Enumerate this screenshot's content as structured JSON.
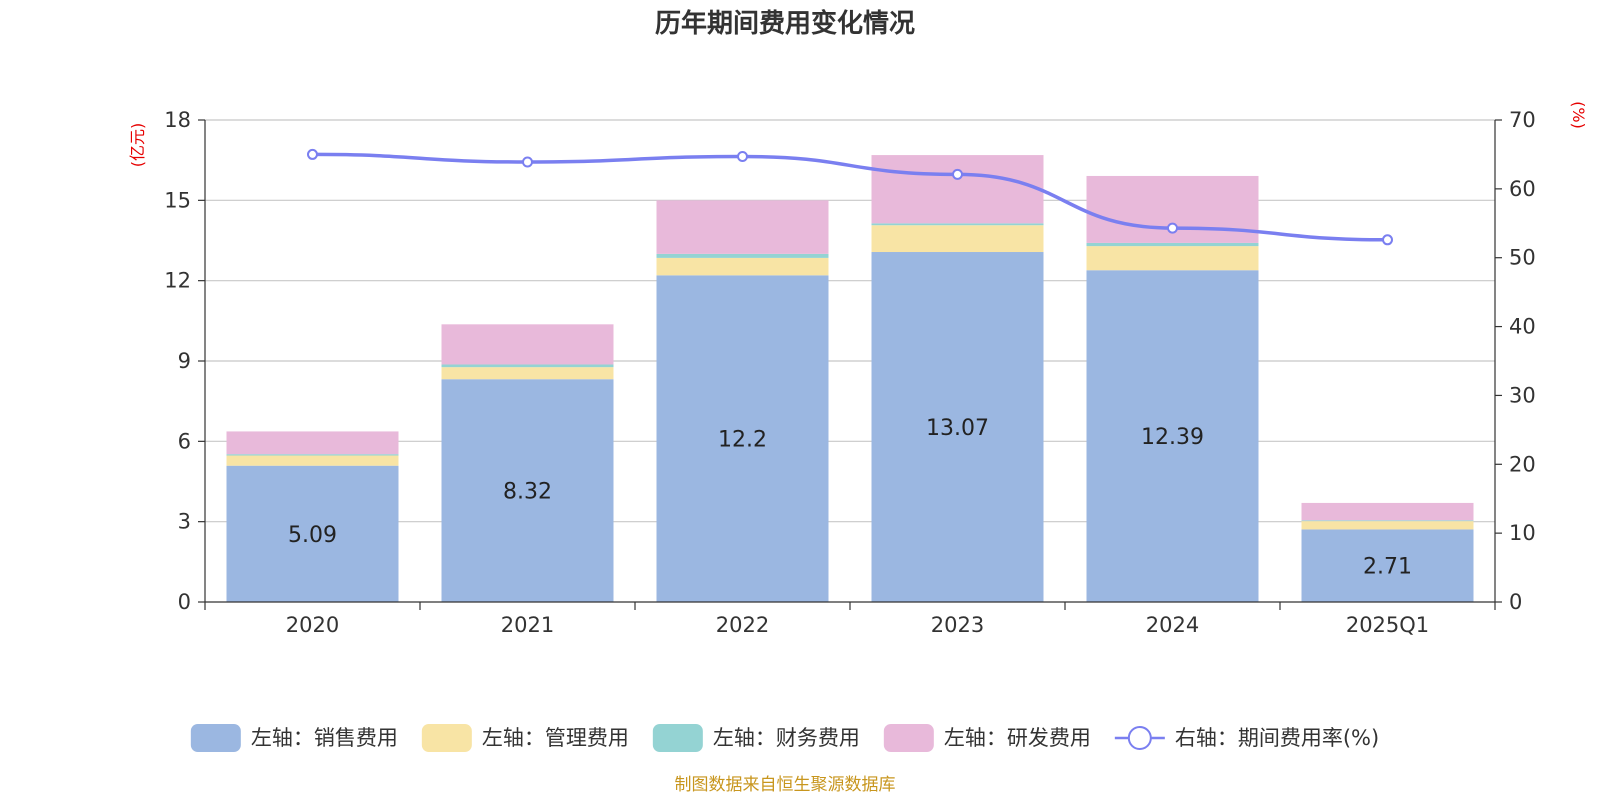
{
  "chart_data": {
    "type": "bar",
    "stacked": true,
    "title": "历年期间费用变化情况",
    "categories": [
      "2020",
      "2021",
      "2022",
      "2023",
      "2024",
      "2025Q1"
    ],
    "y_left": {
      "unit": "(亿元)",
      "ylim": [
        0,
        18
      ],
      "ticks": [
        0,
        3,
        6,
        9,
        12,
        15,
        18
      ]
    },
    "y_right": {
      "unit": "(%)",
      "ylim": [
        0,
        70
      ],
      "ticks": [
        0,
        10,
        20,
        30,
        40,
        50,
        60,
        70
      ]
    },
    "series": [
      {
        "name": "左轴：销售费用",
        "type": "bar",
        "axis": "left",
        "color": "#9bb7e1",
        "values": [
          5.09,
          8.32,
          12.2,
          13.07,
          12.39,
          2.71
        ],
        "show_labels": true
      },
      {
        "name": "左轴：管理费用",
        "type": "bar",
        "axis": "left",
        "color": "#f8e4a5",
        "values": [
          0.38,
          0.45,
          0.65,
          1.0,
          0.9,
          0.31
        ],
        "show_labels": false
      },
      {
        "name": "左轴：财务费用",
        "type": "bar",
        "axis": "left",
        "color": "#94d3d3",
        "values": [
          0.05,
          0.1,
          0.15,
          0.07,
          0.12,
          0.03
        ],
        "show_labels": false
      },
      {
        "name": "左轴：研发费用",
        "type": "bar",
        "axis": "left",
        "color": "#e8b9da",
        "values": [
          0.85,
          1.5,
          2.0,
          2.55,
          2.5,
          0.65
        ],
        "show_labels": false
      },
      {
        "name": "右轴：期间费用率(%)",
        "type": "line",
        "axis": "right",
        "color": "#7a7ff0",
        "values": [
          65.0,
          63.9,
          64.7,
          62.1,
          54.3,
          52.6
        ]
      }
    ],
    "grid": true,
    "legend_position": "bottom"
  },
  "source_note": "制图数据来自恒生聚源数据库"
}
